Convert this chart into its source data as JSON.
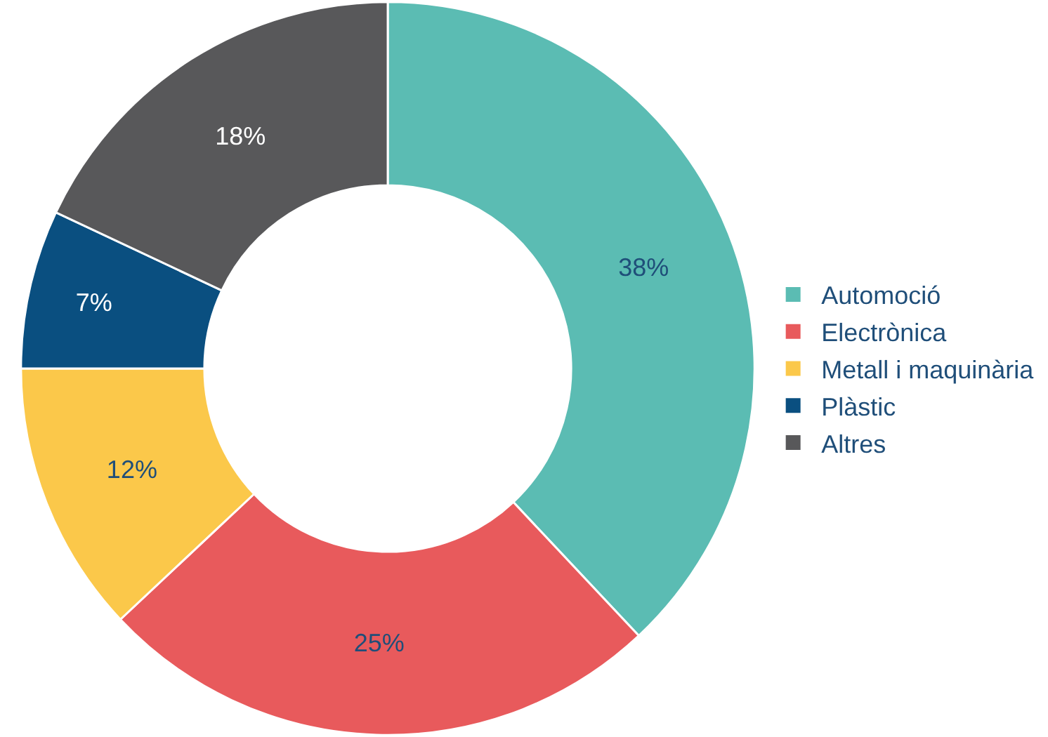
{
  "chart_data": {
    "type": "donut",
    "categories": [
      "Automoció",
      "Electrònica",
      "Metall i maquinària",
      "Plàstic",
      "Altres"
    ],
    "values": [
      38,
      25,
      12,
      7,
      18
    ],
    "colors": [
      "#5bbcb3",
      "#e85a5c",
      "#fbc84a",
      "#0a4f80",
      "#58585a"
    ],
    "value_labels": [
      "38%",
      "25%",
      "12%",
      "7%",
      "18%"
    ],
    "legend": "right"
  }
}
